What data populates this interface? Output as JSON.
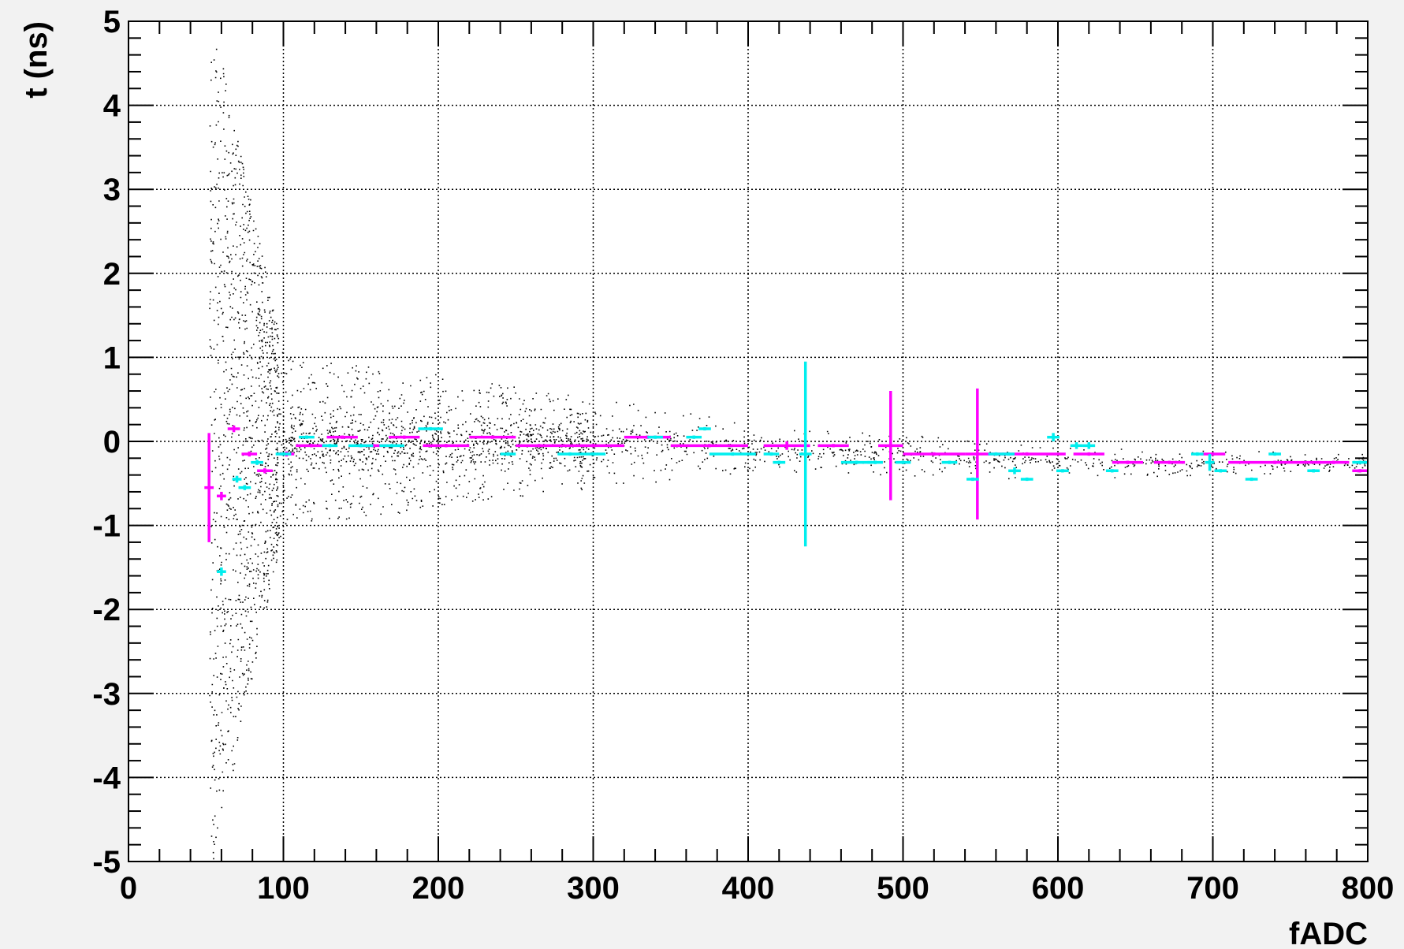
{
  "chart_data": {
    "type": "scatter",
    "title": "",
    "xlabel": "fADC",
    "ylabel": "t (ns)",
    "xlim": [
      0,
      800
    ],
    "ylim": [
      -5,
      5
    ],
    "x_ticks": [
      "0",
      "100",
      "200",
      "300",
      "400",
      "500",
      "600",
      "700",
      "800"
    ],
    "y_ticks": [
      "-5",
      "-4",
      "-3",
      "-2",
      "-1",
      "0",
      "1",
      "2",
      "3",
      "4",
      "5"
    ],
    "grid": true,
    "legend": "none",
    "colors": {
      "background": "#f2f2f2",
      "plot_bg": "#ffffff",
      "points": "#000000",
      "series_a": "#ff00ff",
      "series_b": "#00eeee"
    },
    "series": [
      {
        "color": "#ff00ff",
        "points": [
          {
            "x": 52,
            "y": -0.55,
            "xerr": 3,
            "yerr": 0.65
          },
          {
            "x": 60,
            "y": -0.65,
            "xerr": 3,
            "yerr": 0.05
          },
          {
            "x": 68,
            "y": 0.15,
            "xerr": 4,
            "yerr": 0.04
          },
          {
            "x": 78,
            "y": -0.15,
            "xerr": 5,
            "yerr": 0.03
          },
          {
            "x": 88,
            "y": -0.35,
            "xerr": 5,
            "yerr": 0.03
          },
          {
            "x": 102,
            "y": -0.15,
            "xerr": 5,
            "yerr": 0.03
          },
          {
            "x": 118,
            "y": -0.05,
            "xerr": 10,
            "yerr": 0.02
          },
          {
            "x": 138,
            "y": 0.05,
            "xerr": 10,
            "yerr": 0.02
          },
          {
            "x": 158,
            "y": -0.05,
            "xerr": 10,
            "yerr": 0.02
          },
          {
            "x": 178,
            "y": 0.05,
            "xerr": 10,
            "yerr": 0.02
          },
          {
            "x": 205,
            "y": -0.05,
            "xerr": 15,
            "yerr": 0.02
          },
          {
            "x": 235,
            "y": 0.05,
            "xerr": 15,
            "yerr": 0.02
          },
          {
            "x": 265,
            "y": -0.05,
            "xerr": 15,
            "yerr": 0.02
          },
          {
            "x": 300,
            "y": -0.05,
            "xerr": 20,
            "yerr": 0.02
          },
          {
            "x": 335,
            "y": 0.05,
            "xerr": 15,
            "yerr": 0.02
          },
          {
            "x": 375,
            "y": -0.05,
            "xerr": 25,
            "yerr": 0.02
          },
          {
            "x": 425,
            "y": -0.05,
            "xerr": 15,
            "yerr": 0.05
          },
          {
            "x": 455,
            "y": -0.05,
            "xerr": 10,
            "yerr": 0.02
          },
          {
            "x": 492,
            "y": -0.05,
            "xerr": 8,
            "yerr": 0.65
          },
          {
            "x": 520,
            "y": -0.15,
            "xerr": 20,
            "yerr": 0.02
          },
          {
            "x": 548,
            "y": -0.15,
            "xerr": 8,
            "yerr": 0.78
          },
          {
            "x": 580,
            "y": -0.15,
            "xerr": 25,
            "yerr": 0.02
          },
          {
            "x": 620,
            "y": -0.15,
            "xerr": 10,
            "yerr": 0.02
          },
          {
            "x": 645,
            "y": -0.25,
            "xerr": 10,
            "yerr": 0.02
          },
          {
            "x": 672,
            "y": -0.25,
            "xerr": 10,
            "yerr": 0.02
          },
          {
            "x": 700,
            "y": -0.15,
            "xerr": 8,
            "yerr": 0.02
          },
          {
            "x": 740,
            "y": -0.25,
            "xerr": 30,
            "yerr": 0.02
          },
          {
            "x": 778,
            "y": -0.25,
            "xerr": 10,
            "yerr": 0.02
          },
          {
            "x": 795,
            "y": -0.35,
            "xerr": 5,
            "yerr": 0.02
          }
        ]
      },
      {
        "color": "#00eeee",
        "points": [
          {
            "x": 60,
            "y": -1.55,
            "xerr": 3,
            "yerr": 0.05
          },
          {
            "x": 70,
            "y": -0.45,
            "xerr": 3,
            "yerr": 0.04
          },
          {
            "x": 75,
            "y": -0.55,
            "xerr": 4,
            "yerr": 0.03
          },
          {
            "x": 83,
            "y": -0.25,
            "xerr": 4,
            "yerr": 0.03
          },
          {
            "x": 100,
            "y": -0.15,
            "xerr": 5,
            "yerr": 0.02
          },
          {
            "x": 115,
            "y": 0.05,
            "xerr": 5,
            "yerr": 0.02
          },
          {
            "x": 130,
            "y": -0.05,
            "xerr": 5,
            "yerr": 0.02
          },
          {
            "x": 150,
            "y": -0.05,
            "xerr": 8,
            "yerr": 0.02
          },
          {
            "x": 170,
            "y": -0.05,
            "xerr": 8,
            "yerr": 0.02
          },
          {
            "x": 195,
            "y": 0.15,
            "xerr": 8,
            "yerr": 0.02
          },
          {
            "x": 245,
            "y": -0.15,
            "xerr": 5,
            "yerr": 0.02
          },
          {
            "x": 285,
            "y": -0.15,
            "xerr": 8,
            "yerr": 0.02
          },
          {
            "x": 300,
            "y": -0.15,
            "xerr": 8,
            "yerr": 0.02
          },
          {
            "x": 340,
            "y": 0.05,
            "xerr": 5,
            "yerr": 0.02
          },
          {
            "x": 365,
            "y": 0.05,
            "xerr": 5,
            "yerr": 0.02
          },
          {
            "x": 372,
            "y": 0.15,
            "xerr": 4,
            "yerr": 0.02
          },
          {
            "x": 390,
            "y": -0.15,
            "xerr": 15,
            "yerr": 0.02
          },
          {
            "x": 415,
            "y": -0.15,
            "xerr": 5,
            "yerr": 0.02
          },
          {
            "x": 420,
            "y": -0.25,
            "xerr": 4,
            "yerr": 0.02
          },
          {
            "x": 437,
            "y": -0.15,
            "xerr": 4,
            "yerr": 1.1
          },
          {
            "x": 470,
            "y": -0.25,
            "xerr": 10,
            "yerr": 0.02
          },
          {
            "x": 482,
            "y": -0.25,
            "xerr": 5,
            "yerr": 0.02
          },
          {
            "x": 500,
            "y": -0.25,
            "xerr": 5,
            "yerr": 0.02
          },
          {
            "x": 530,
            "y": -0.25,
            "xerr": 5,
            "yerr": 0.02
          },
          {
            "x": 545,
            "y": -0.45,
            "xerr": 4,
            "yerr": 0.02
          },
          {
            "x": 560,
            "y": -0.15,
            "xerr": 5,
            "yerr": 0.02
          },
          {
            "x": 568,
            "y": -0.15,
            "xerr": 4,
            "yerr": 0.02
          },
          {
            "x": 572,
            "y": -0.35,
            "xerr": 4,
            "yerr": 0.04
          },
          {
            "x": 580,
            "y": -0.45,
            "xerr": 4,
            "yerr": 0.02
          },
          {
            "x": 597,
            "y": 0.05,
            "xerr": 4,
            "yerr": 0.05
          },
          {
            "x": 603,
            "y": -0.35,
            "xerr": 4,
            "yerr": 0.02
          },
          {
            "x": 612,
            "y": -0.05,
            "xerr": 4,
            "yerr": 0.04
          },
          {
            "x": 620,
            "y": -0.05,
            "xerr": 4,
            "yerr": 0.04
          },
          {
            "x": 635,
            "y": -0.35,
            "xerr": 4,
            "yerr": 0.02
          },
          {
            "x": 690,
            "y": -0.15,
            "xerr": 4,
            "yerr": 0.02
          },
          {
            "x": 698,
            "y": -0.25,
            "xerr": 3,
            "yerr": 0.1
          },
          {
            "x": 705,
            "y": -0.35,
            "xerr": 4,
            "yerr": 0.02
          },
          {
            "x": 725,
            "y": -0.45,
            "xerr": 4,
            "yerr": 0.02
          },
          {
            "x": 740,
            "y": -0.15,
            "xerr": 4,
            "yerr": 0.02
          },
          {
            "x": 765,
            "y": -0.35,
            "xerr": 4,
            "yerr": 0.02
          },
          {
            "x": 795,
            "y": -0.25,
            "xerr": 5,
            "yerr": 0.02
          }
        ]
      }
    ],
    "scatter_cloud": {
      "color": "#000000",
      "x_start": 52,
      "x_end": 800,
      "y_offset_at_high_x": -0.25,
      "y_halfwidth_at_x55": 5.0,
      "y_halfwidth_at_x100": 1.0,
      "y_halfwidth_at_x200": 0.8,
      "y_halfwidth_at_x400": 0.3,
      "y_halfwidth_at_x800": 0.1
    }
  }
}
